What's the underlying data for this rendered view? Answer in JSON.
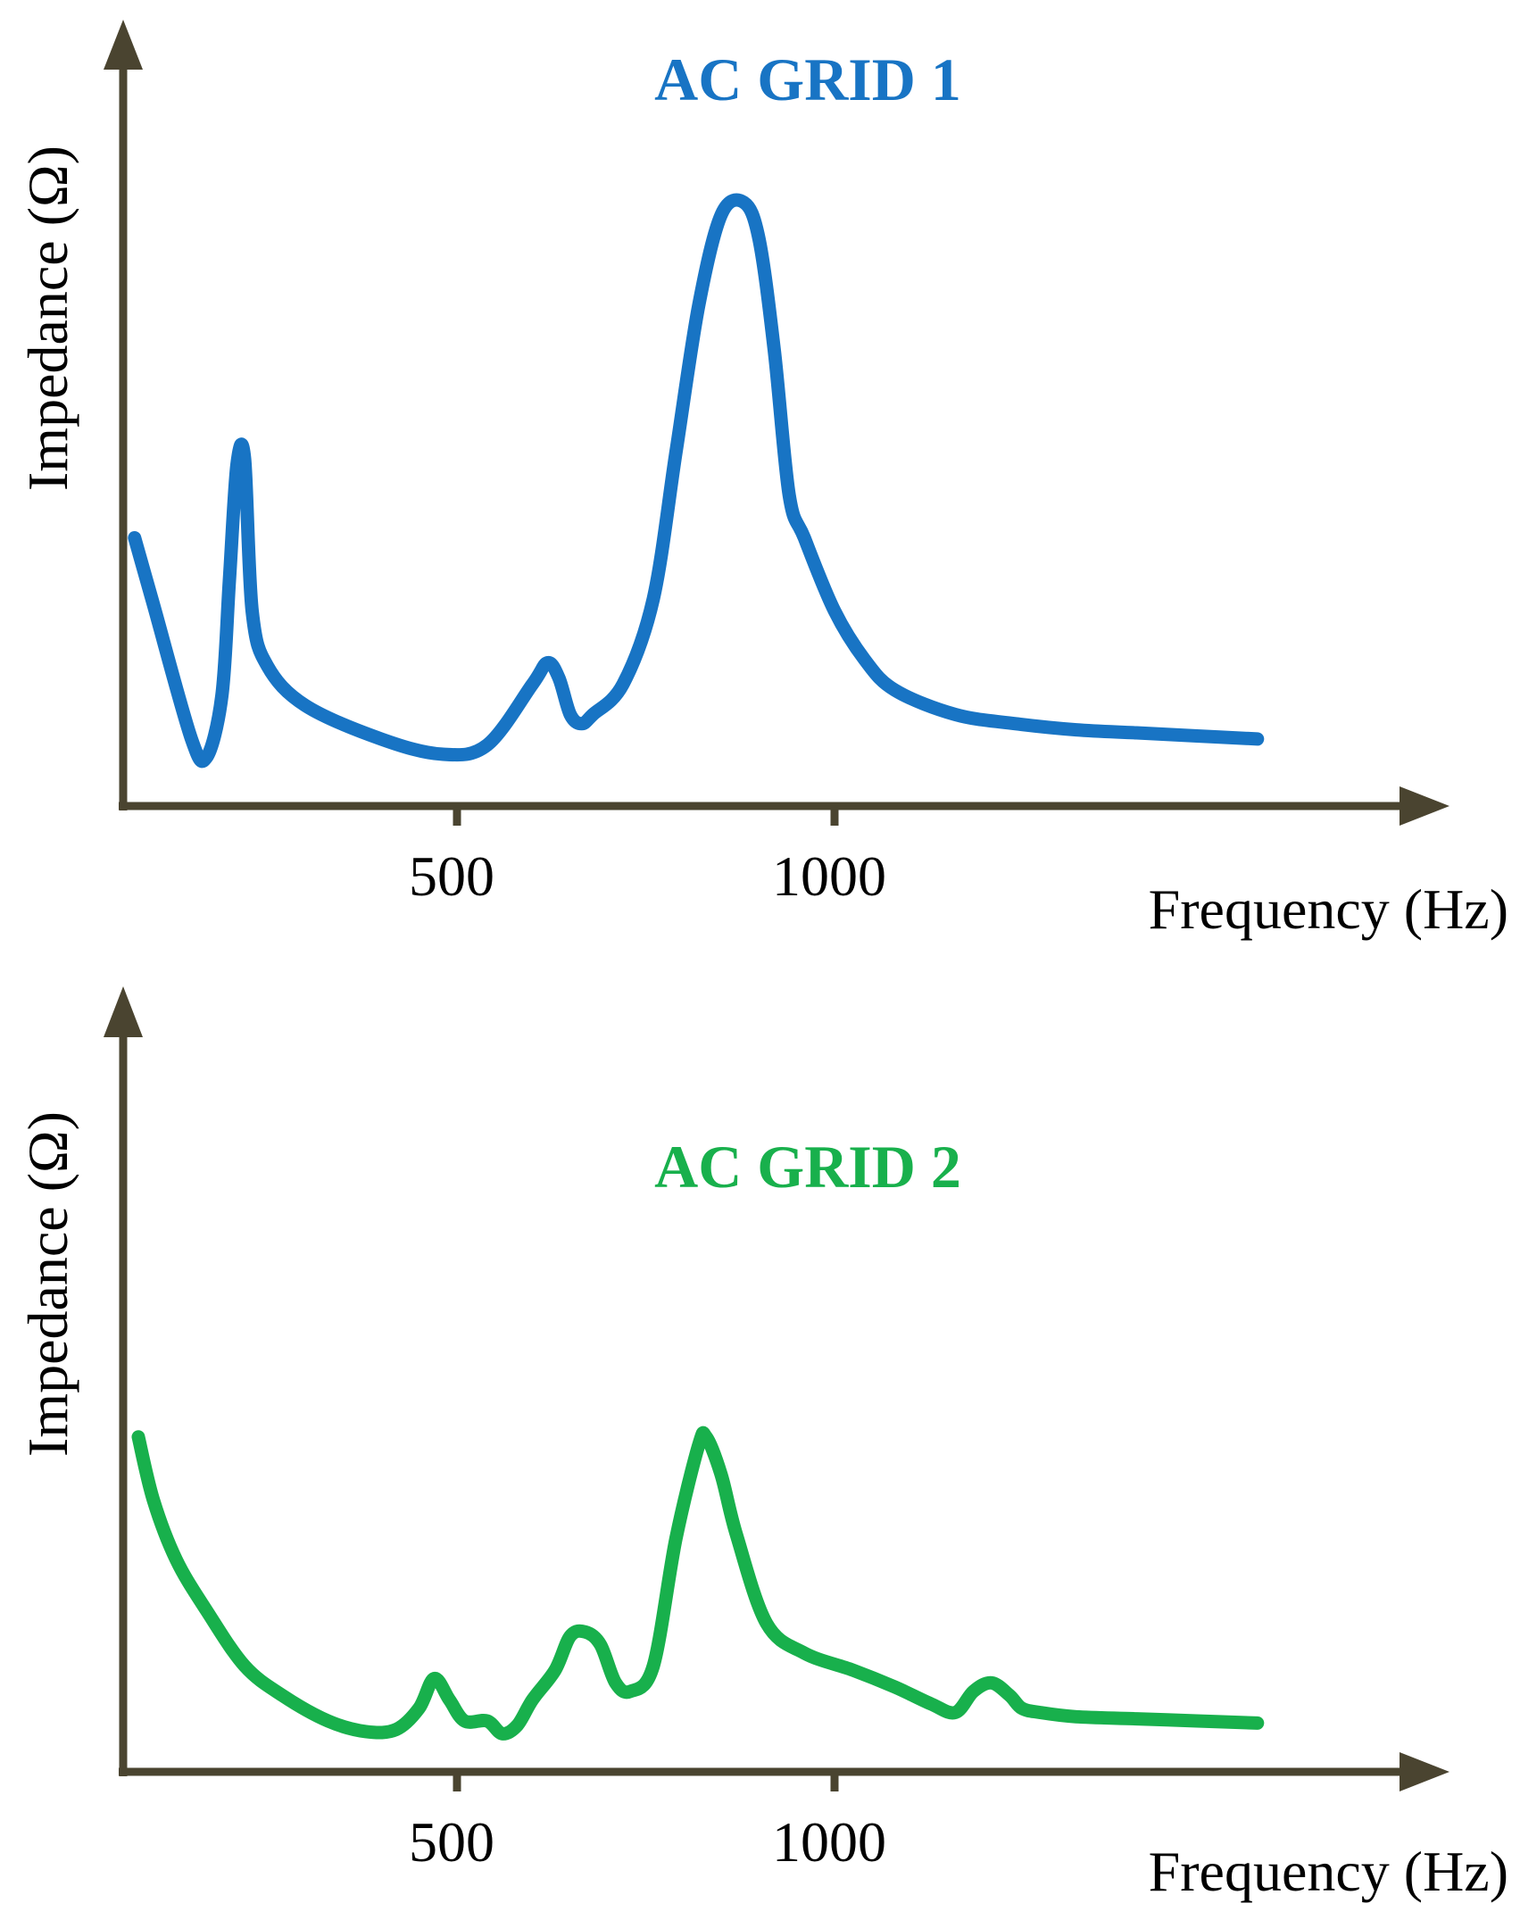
{
  "chart_data": [
    {
      "type": "line",
      "title": "AC GRID 1",
      "xlabel": "Frequency (Hz)",
      "ylabel": "Impedance (Ω)",
      "x_ticks": [
        500,
        1000
      ],
      "x_tick_labels": [
        "500",
        "1000"
      ],
      "xlim": [
        60,
        1800
      ],
      "ylim": [
        0,
        1
      ],
      "color": "#1874c4",
      "series": [
        {
          "x": [
            75,
            100,
            150,
            170,
            190,
            200,
            210,
            220,
            230,
            250,
            300,
            400,
            480,
            540,
            600,
            620,
            635,
            650,
            665,
            680,
            720,
            760,
            790,
            820,
            850,
            880,
            900,
            920,
            940,
            960,
            1000,
            1050,
            1100,
            1200,
            1300,
            1400,
            1500,
            1600,
            1700
          ],
          "y": [
            0.44,
            0.33,
            0.11,
            0.08,
            0.18,
            0.37,
            0.56,
            0.57,
            0.32,
            0.23,
            0.165,
            0.11,
            0.085,
            0.1,
            0.2,
            0.235,
            0.21,
            0.15,
            0.135,
            0.15,
            0.2,
            0.34,
            0.58,
            0.82,
            0.97,
            0.99,
            0.93,
            0.75,
            0.51,
            0.44,
            0.32,
            0.24,
            0.19,
            0.15,
            0.135,
            0.125,
            0.12,
            0.115,
            0.11
          ]
        }
      ]
    },
    {
      "type": "line",
      "title": "AC GRID 2",
      "xlabel": "Frequency (Hz)",
      "ylabel": "Impedance (Ω)",
      "x_ticks": [
        500,
        1000
      ],
      "x_tick_labels": [
        "500",
        "1000"
      ],
      "xlim": [
        60,
        1800
      ],
      "ylim": [
        0,
        1
      ],
      "color": "#18b04c",
      "series": [
        {
          "x": [
            80,
            100,
            130,
            170,
            220,
            270,
            330,
            380,
            420,
            450,
            470,
            490,
            510,
            540,
            560,
            580,
            600,
            630,
            650,
            670,
            690,
            710,
            730,
            760,
            790,
            820,
            830,
            850,
            870,
            910,
            960,
            1030,
            1100,
            1160,
            1200,
            1230,
            1260,
            1290,
            1310,
            1340,
            1400,
            1500,
            1600,
            1700
          ],
          "y": [
            0.79,
            0.64,
            0.5,
            0.38,
            0.25,
            0.18,
            0.12,
            0.095,
            0.1,
            0.15,
            0.22,
            0.17,
            0.12,
            0.12,
            0.09,
            0.11,
            0.17,
            0.24,
            0.32,
            0.33,
            0.3,
            0.21,
            0.19,
            0.25,
            0.55,
            0.77,
            0.79,
            0.7,
            0.56,
            0.35,
            0.28,
            0.24,
            0.2,
            0.16,
            0.14,
            0.19,
            0.21,
            0.18,
            0.15,
            0.14,
            0.13,
            0.125,
            0.12,
            0.115
          ]
        }
      ]
    }
  ]
}
